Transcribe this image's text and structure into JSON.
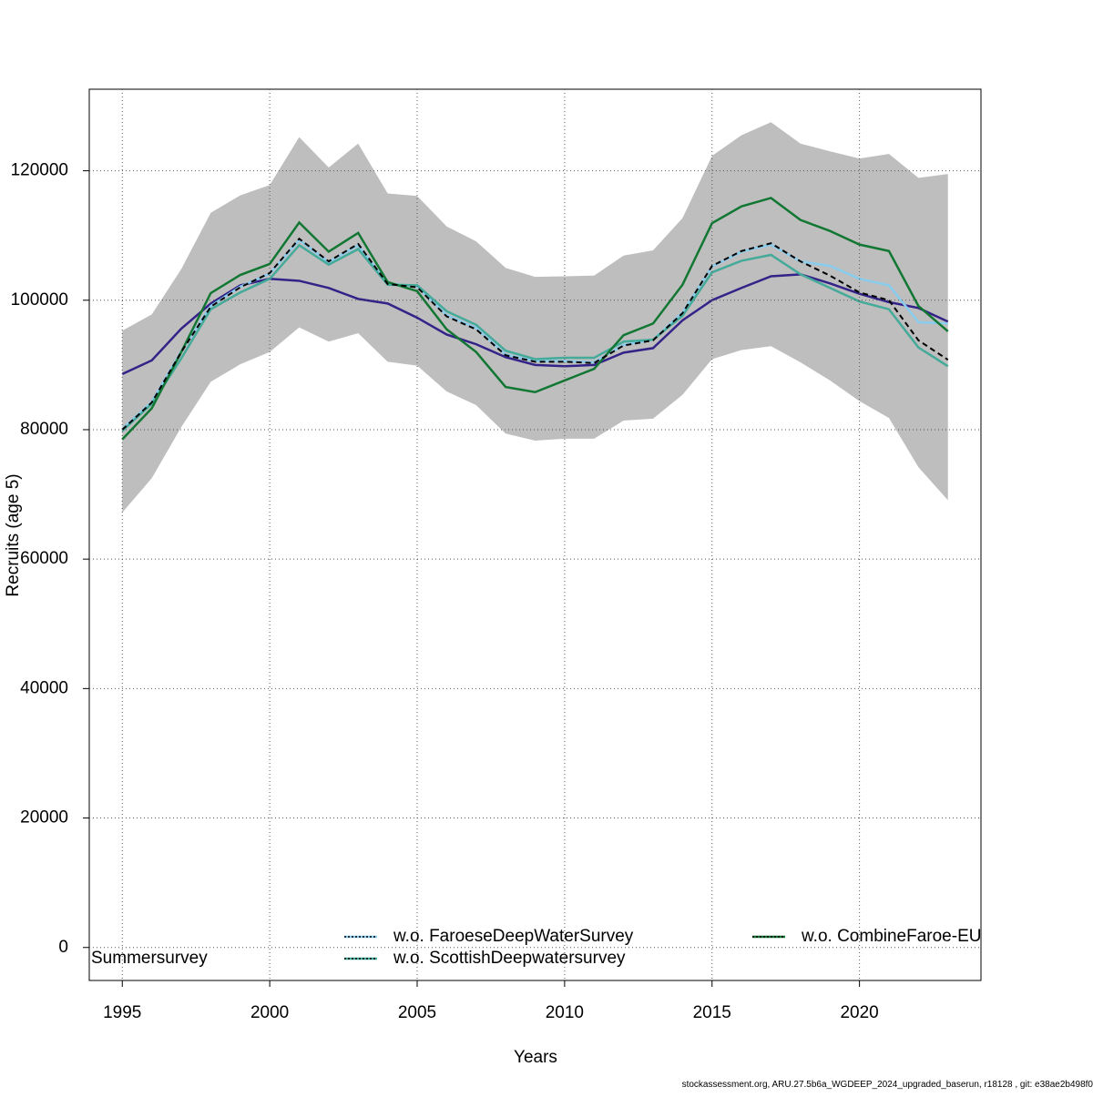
{
  "chart_data": {
    "type": "line",
    "y_label": "Recruits (age 5)",
    "x_label": "Years",
    "caption": "stockassessment.org, ARU.27.5b6a_WGDEEP_2024_upgraded_baserun, r18128 , git: e38ae2b498f0",
    "x": [
      1995,
      1996,
      1997,
      1998,
      1999,
      2000,
      2001,
      2002,
      2003,
      2004,
      2005,
      2006,
      2007,
      2008,
      2009,
      2010,
      2011,
      2012,
      2013,
      2014,
      2015,
      2016,
      2017,
      2018,
      2019,
      2020,
      2021,
      2022,
      2023
    ],
    "xlim": [
      1993.88,
      2024.12
    ],
    "xticks": [
      1995,
      2000,
      2005,
      2010,
      2015,
      2020
    ],
    "ylim": [
      -5100,
      132600
    ],
    "yticks": [
      0,
      20000,
      40000,
      60000,
      80000,
      100000,
      120000
    ],
    "grid": true,
    "band_color": "#bebebe",
    "ci_upper": [
      95300,
      97800,
      104800,
      113500,
      116200,
      117800,
      125200,
      120500,
      124200,
      116500,
      116100,
      111400,
      109100,
      105000,
      103600,
      103700,
      103800,
      106900,
      107700,
      112700,
      122300,
      125500,
      127500,
      124200,
      123000,
      121900,
      122600,
      118900,
      119500
    ],
    "ci_lower": [
      67200,
      72500,
      80400,
      87400,
      90100,
      92000,
      95800,
      93600,
      94900,
      90500,
      89900,
      85900,
      83800,
      79400,
      78300,
      78600,
      78600,
      81400,
      81700,
      85400,
      90900,
      92300,
      92900,
      90400,
      87600,
      84400,
      81800,
      74200,
      69100
    ],
    "base_color": "#000000",
    "base": [
      80000,
      84200,
      92000,
      99000,
      102000,
      104200,
      109500,
      106000,
      108700,
      102500,
      102000,
      97500,
      95500,
      91500,
      90500,
      90500,
      90300,
      93000,
      93800,
      98000,
      105300,
      107600,
      108800,
      106000,
      103800,
      101200,
      100000,
      93800,
      90800
    ],
    "series": [
      {
        "name": "Summersurvey",
        "color": "#332288",
        "values": [
          88600,
          90700,
          95600,
          99500,
          102300,
          103300,
          103000,
          101900,
          100200,
          99500,
          97300,
          94700,
          93200,
          91200,
          90000,
          89800,
          90000,
          91900,
          92600,
          96900,
          100000,
          101900,
          103700,
          104000,
          102600,
          101000,
          99700,
          98800,
          96700
        ]
      },
      {
        "name": "w.o. FaroeseDeepWaterSurvey",
        "color": "#88ccee",
        "values": [
          80100,
          84300,
          92100,
          99100,
          102100,
          104100,
          109300,
          105900,
          108500,
          102600,
          102100,
          97700,
          95700,
          91600,
          90600,
          90600,
          90400,
          93100,
          93900,
          98100,
          105200,
          107500,
          108600,
          106000,
          105300,
          103300,
          102300,
          96600,
          96400
        ]
      },
      {
        "name": "w.o. ScottishDeepwatersurvey",
        "color": "#44aa99",
        "values": [
          79800,
          84000,
          91000,
          98600,
          101200,
          103300,
          108500,
          105500,
          107900,
          102400,
          102300,
          98300,
          96200,
          92200,
          90900,
          91100,
          91100,
          93600,
          93900,
          97600,
          104300,
          106100,
          107000,
          104000,
          101900,
          99800,
          98600,
          92700,
          89800
        ]
      },
      {
        "name": "w.o. CombineFaroe-EU",
        "color": "#117733",
        "values": [
          78500,
          83300,
          92000,
          101100,
          103900,
          105600,
          112000,
          107500,
          110400,
          102800,
          101400,
          95500,
          92000,
          86600,
          85800,
          87600,
          89400,
          94600,
          96400,
          102400,
          111900,
          114500,
          115800,
          112400,
          110700,
          108600,
          107600,
          99100,
          95200
        ]
      }
    ]
  }
}
